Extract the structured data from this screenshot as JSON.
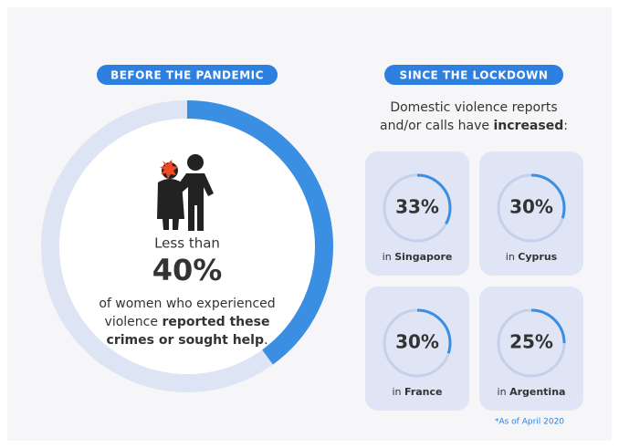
{
  "left": {
    "badge": "BEFORE THE PANDEMIC",
    "lead": "Less than",
    "stat": {
      "value": 40,
      "label": "40%"
    },
    "description": [
      "of women who experienced",
      "violence ",
      "reported these",
      "crimes or sought help",
      "."
    ]
  },
  "right": {
    "badge": "SINCE THE LOCKDOWN",
    "intro": [
      "Domestic violence reports",
      "and/or calls have ",
      "increased",
      ":"
    ],
    "cards": [
      {
        "stat": {
          "value": 33,
          "label": "33%"
        },
        "prefix": "in ",
        "place": "Singapore"
      },
      {
        "stat": {
          "value": 30,
          "label": "30%"
        },
        "prefix": "in ",
        "place": "Cyprus"
      },
      {
        "stat": {
          "value": 30,
          "label": "30%"
        },
        "prefix": "in ",
        "place": "France"
      },
      {
        "stat": {
          "value": 25,
          "label": "25%"
        },
        "prefix": "in ",
        "place": "Argentina"
      }
    ],
    "footnote": "*As of April 2020"
  }
}
